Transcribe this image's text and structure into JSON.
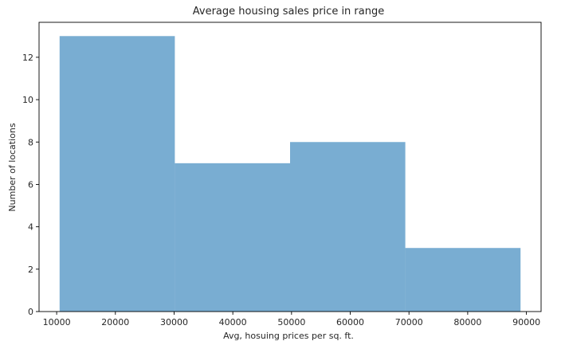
{
  "chart_data": {
    "type": "bar",
    "title": "Average housing sales price in range",
    "xlabel": "Avg, hosuing prices per sq. ft.",
    "ylabel": "Number of locations",
    "bins": [
      {
        "x_start": 10500,
        "x_end": 30125,
        "count": 13
      },
      {
        "x_start": 30125,
        "x_end": 49750,
        "count": 7
      },
      {
        "x_start": 49750,
        "x_end": 69375,
        "count": 8
      },
      {
        "x_start": 69375,
        "x_end": 89000,
        "count": 3
      }
    ],
    "xlim": [
      7000,
      92500
    ],
    "ylim": [
      0,
      13.65
    ],
    "x_ticks": [
      10000,
      20000,
      30000,
      40000,
      50000,
      60000,
      70000,
      80000,
      90000
    ],
    "y_ticks": [
      0,
      2,
      4,
      6,
      8,
      10,
      12
    ],
    "bar_color": "#1f77b4",
    "bar_alpha": 0.6,
    "grid": false,
    "legend": "none"
  }
}
